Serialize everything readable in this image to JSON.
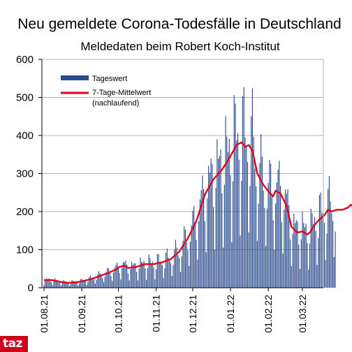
{
  "chart_data": {
    "type": "bar+line",
    "title": "Neu gemeldete Corona-Todesfälle in Deutschland",
    "subtitle": "Meldedaten beim Robert Koch-Institut",
    "ylim": [
      0,
      600
    ],
    "yticks": [
      0,
      100,
      200,
      300,
      400,
      500,
      600
    ],
    "xticks": [
      "01.08.21",
      "01.09.21",
      "01.10.21",
      "01.11.21",
      "01.12.21",
      "01.01.22",
      "01.02.22",
      "01.03.22"
    ],
    "start_date": "2021-08-01",
    "days": 240,
    "grid": "horizontal",
    "legend_position": "top-left",
    "series": [
      {
        "name": "Tageswert",
        "kind": "bar",
        "color": "#2a4a8c",
        "weekly_pattern": [
          0.35,
          0.8,
          1.3,
          1.4,
          1.25,
          1.05,
          0.75
        ]
      },
      {
        "name": "7-Tage-Mittelwert",
        "name_line2": "(nachlaufend)",
        "kind": "line",
        "color": "#e3001b",
        "points": [
          [
            0,
            20
          ],
          [
            7,
            20
          ],
          [
            14,
            15
          ],
          [
            21,
            13
          ],
          [
            28,
            15
          ],
          [
            31,
            17
          ],
          [
            38,
            22
          ],
          [
            45,
            30
          ],
          [
            52,
            38
          ],
          [
            59,
            48
          ],
          [
            62,
            55
          ],
          [
            66,
            58
          ],
          [
            69,
            52
          ],
          [
            76,
            55
          ],
          [
            83,
            62
          ],
          [
            90,
            62
          ],
          [
            97,
            67
          ],
          [
            104,
            75
          ],
          [
            111,
            95
          ],
          [
            118,
            130
          ],
          [
            125,
            175
          ],
          [
            132,
            245
          ],
          [
            139,
            285
          ],
          [
            146,
            310
          ],
          [
            152,
            340
          ],
          [
            158,
            375
          ],
          [
            162,
            382
          ],
          [
            165,
            370
          ],
          [
            168,
            375
          ],
          [
            171,
            360
          ],
          [
            175,
            300
          ],
          [
            180,
            270
          ],
          [
            185,
            250
          ],
          [
            188,
            240
          ],
          [
            190,
            255
          ],
          [
            194,
            248
          ],
          [
            199,
            215
          ],
          [
            203,
            160
          ],
          [
            208,
            145
          ],
          [
            212,
            148
          ],
          [
            216,
            140
          ],
          [
            218,
            145
          ],
          [
            222,
            165
          ],
          [
            226,
            180
          ],
          [
            230,
            190
          ],
          [
            233,
            205
          ],
          [
            236,
            200
          ],
          [
            240,
            205
          ],
          [
            245,
            205
          ],
          [
            249,
            210
          ],
          [
            252,
            218
          ],
          [
            255,
            210
          ],
          [
            258,
            200
          ]
        ]
      }
    ]
  },
  "logo": {
    "text": "taz",
    "color": "#d0021b"
  }
}
